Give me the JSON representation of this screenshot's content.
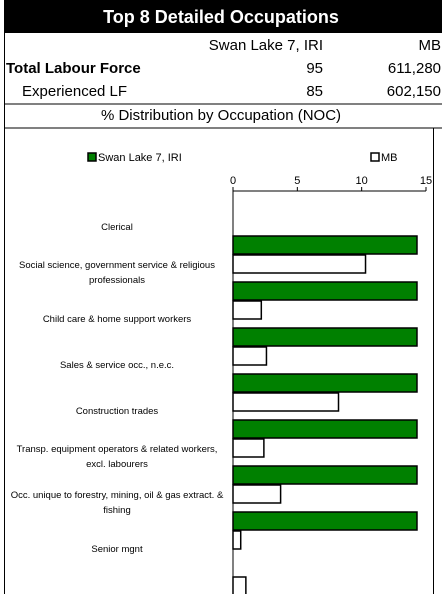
{
  "table": {
    "title": "Top 8 Detailed Occupations",
    "columns": [
      "Swan Lake  7, IRI",
      "MB"
    ],
    "rows": [
      [
        "Total Labour Force",
        "95",
        "611,280"
      ],
      [
        "Experienced LF",
        "85",
        "602,150"
      ]
    ],
    "section": "% Distribution by Occupation (NOC)"
  },
  "chart_data": {
    "type": "bar",
    "orientation": "horizontal",
    "categories": [
      "Clerical",
      "Social science, government service & religious professionals",
      "Child care & home support workers",
      "Sales & service occ., n.e.c.",
      "Construction trades",
      "Transp. equipment operators & related workers, excl. labourers",
      "Occ. unique to forestry, mining, oil & gas extract. & fishing",
      "Senior mgnt"
    ],
    "series": [
      {
        "name": "Swan Lake  7, IRI",
        "color": "#008000",
        "values": [
          14.3,
          14.3,
          14.3,
          14.3,
          14.3,
          14.3,
          14.3,
          0
        ]
      },
      {
        "name": "MB",
        "color": "#ffffff",
        "values": [
          10.3,
          2.2,
          2.6,
          8.2,
          2.4,
          3.7,
          0.6,
          1.0
        ]
      }
    ],
    "xlim": [
      0,
      15
    ],
    "xticks": [
      0,
      5,
      10,
      15
    ],
    "legend": "top"
  }
}
